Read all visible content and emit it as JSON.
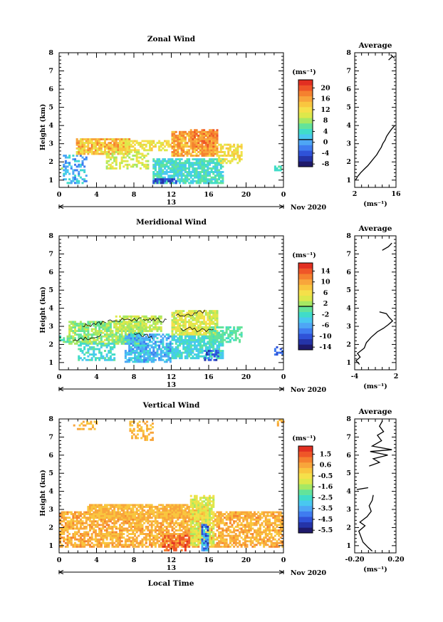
{
  "figure": {
    "xlabel": "Local Time",
    "date_label": "13",
    "month_label": "Nov 2020",
    "ylabel": "Height (km)",
    "unit_label": "(ms⁻¹)",
    "avg_title": "Average",
    "avg_xlabel": "(ms⁻¹)"
  },
  "colors": {
    "scale": [
      "#1f1a6b",
      "#2534a8",
      "#2f52d8",
      "#3f7cf0",
      "#4ea6f5",
      "#49c8f0",
      "#40dcc9",
      "#63e39a",
      "#a6e863",
      "#dde84b",
      "#f5e04a",
      "#f9c63f",
      "#f8a53b",
      "#f5812f",
      "#ef5628",
      "#e22f21"
    ]
  },
  "chart_data": [
    {
      "id": "zonal",
      "type": "heatmap",
      "title": "Zonal Wind",
      "x_range": [
        0,
        24
      ],
      "x_ticks": [
        "0",
        "4",
        "8",
        "12",
        "16",
        "20",
        "0"
      ],
      "y_range": [
        0.6,
        8
      ],
      "y_ticks": [
        "1",
        "2",
        "3",
        "4",
        "5",
        "6",
        "7",
        "8"
      ],
      "colorbar": {
        "range": [
          -10,
          22
        ],
        "ticks": [
          "20",
          "16",
          "12",
          "8",
          "4",
          "0",
          "-4",
          "-8"
        ],
        "zero_line": 0
      },
      "layers": [
        {
          "from": 0.0,
          "to": 0.6,
          "ymin": 1.5,
          "ymax": 2.0,
          "lo": 3,
          "hi": 7,
          "cov": 0.25
        },
        {
          "from": 0.4,
          "to": 3.0,
          "ymin": 0.8,
          "ymax": 2.4,
          "lo": -4,
          "hi": 4,
          "cov": 0.45
        },
        {
          "from": 1.8,
          "to": 7.5,
          "ymin": 2.4,
          "ymax": 3.3,
          "lo": 9,
          "hi": 17,
          "cov": 0.85
        },
        {
          "from": 5.0,
          "to": 9.5,
          "ymin": 1.6,
          "ymax": 2.6,
          "lo": 6,
          "hi": 12,
          "cov": 0.5
        },
        {
          "from": 7.0,
          "to": 12.0,
          "ymin": 2.6,
          "ymax": 3.2,
          "lo": 8,
          "hi": 13,
          "cov": 0.6
        },
        {
          "from": 10.0,
          "to": 17.5,
          "ymin": 0.8,
          "ymax": 2.2,
          "lo": 0,
          "hi": 6,
          "cov": 0.8
        },
        {
          "from": 12.0,
          "to": 17.0,
          "ymin": 2.3,
          "ymax": 3.7,
          "lo": 10,
          "hi": 18,
          "cov": 0.85
        },
        {
          "from": 14.0,
          "to": 17.0,
          "ymin": 2.8,
          "ymax": 3.8,
          "lo": 14,
          "hi": 19,
          "cov": 0.7
        },
        {
          "from": 17.0,
          "to": 19.5,
          "ymin": 1.9,
          "ymax": 3.0,
          "lo": 8,
          "hi": 14,
          "cov": 0.6
        },
        {
          "from": 10.0,
          "to": 12.5,
          "ymin": 0.8,
          "ymax": 1.1,
          "lo": -8,
          "hi": -4,
          "cov": 0.7
        },
        {
          "from": 23.0,
          "to": 24.0,
          "ymin": 1.5,
          "ymax": 1.8,
          "lo": 2,
          "hi": 5,
          "cov": 0.8
        }
      ],
      "contours": false,
      "average": {
        "x_range": [
          2,
          16
        ],
        "x_ticks": [
          "2",
          "16"
        ],
        "y_range": [
          0.6,
          8
        ],
        "points": [
          [
            2.3,
            1.0
          ],
          [
            3.0,
            1.2
          ],
          [
            4.0,
            1.4
          ],
          [
            5.2,
            1.6
          ],
          [
            6.5,
            1.8
          ],
          [
            7.5,
            2.0
          ],
          [
            8.5,
            2.2
          ],
          [
            9.5,
            2.4
          ],
          [
            10.2,
            2.6
          ],
          [
            11.0,
            2.8
          ],
          [
            11.5,
            3.0
          ],
          [
            12.3,
            3.2
          ],
          [
            12.8,
            3.4
          ],
          [
            13.6,
            3.6
          ],
          [
            14.5,
            3.8
          ],
          [
            15.6,
            4.0
          ]
        ],
        "points2": [
          [
            13.5,
            7.6
          ],
          [
            14.8,
            7.8
          ],
          [
            15.5,
            7.7
          ],
          [
            14.2,
            7.9
          ]
        ]
      }
    },
    {
      "id": "meridional",
      "type": "heatmap",
      "title": "Meridional Wind",
      "x_range": [
        0,
        24
      ],
      "x_ticks": [
        "0",
        "4",
        "8",
        "12",
        "16",
        "20",
        "0"
      ],
      "y_range": [
        0.6,
        8
      ],
      "y_ticks": [
        "1",
        "2",
        "3",
        "4",
        "5",
        "6",
        "7",
        "8"
      ],
      "colorbar": {
        "range": [
          -16,
          16
        ],
        "ticks": [
          "14",
          "10",
          "6",
          "2",
          "-2",
          "-6",
          "-10",
          "-14"
        ],
        "zero_line": 0
      },
      "layers": [
        {
          "from": 0.0,
          "to": 2.0,
          "ymin": 2.1,
          "ymax": 2.5,
          "lo": -3,
          "hi": 1,
          "cov": 0.6
        },
        {
          "from": 1.0,
          "to": 9.0,
          "ymin": 2.0,
          "ymax": 3.3,
          "lo": -2,
          "hi": 3,
          "cov": 0.75
        },
        {
          "from": 2.0,
          "to": 6.0,
          "ymin": 1.1,
          "ymax": 2.1,
          "lo": -6,
          "hi": -1,
          "cov": 0.5
        },
        {
          "from": 6.0,
          "to": 11.0,
          "ymin": 2.7,
          "ymax": 3.6,
          "lo": 0,
          "hi": 4,
          "cov": 0.7
        },
        {
          "from": 7.0,
          "to": 12.0,
          "ymin": 1.0,
          "ymax": 2.6,
          "lo": -9,
          "hi": -3,
          "cov": 0.75
        },
        {
          "from": 12.0,
          "to": 17.0,
          "ymin": 2.5,
          "ymax": 3.9,
          "lo": 1,
          "hi": 6,
          "cov": 0.8
        },
        {
          "from": 12.0,
          "to": 17.5,
          "ymin": 1.2,
          "ymax": 2.5,
          "lo": -6,
          "hi": -1,
          "cov": 0.75
        },
        {
          "from": 16.0,
          "to": 19.5,
          "ymin": 2.1,
          "ymax": 3.0,
          "lo": -3,
          "hi": 0,
          "cov": 0.6
        },
        {
          "from": 15.5,
          "to": 17.0,
          "ymin": 1.1,
          "ymax": 1.7,
          "lo": -13,
          "hi": -9,
          "cov": 0.5
        },
        {
          "from": 23.0,
          "to": 24.0,
          "ymin": 1.4,
          "ymax": 1.9,
          "lo": -11,
          "hi": -8,
          "cov": 0.6
        }
      ],
      "contours": true,
      "average": {
        "x_range": [
          -4,
          2
        ],
        "x_ticks": [
          "-4",
          "2"
        ],
        "y_range": [
          0.6,
          8
        ],
        "points": [
          [
            -3.3,
            0.9
          ],
          [
            -3.8,
            1.1
          ],
          [
            -3.2,
            1.3
          ],
          [
            -3.6,
            1.5
          ],
          [
            -2.6,
            1.8
          ],
          [
            -2.3,
            2.1
          ],
          [
            -1.6,
            2.4
          ],
          [
            -0.7,
            2.7
          ],
          [
            0.2,
            2.9
          ],
          [
            0.9,
            3.1
          ],
          [
            1.5,
            3.3
          ],
          [
            1.0,
            3.5
          ],
          [
            0.6,
            3.7
          ],
          [
            -0.4,
            3.8
          ]
        ],
        "points2": [
          [
            0.0,
            7.2
          ],
          [
            0.9,
            7.4
          ],
          [
            1.4,
            7.6
          ]
        ]
      }
    },
    {
      "id": "vertical",
      "type": "heatmap",
      "title": "Vertical Wind",
      "x_range": [
        0,
        24
      ],
      "x_ticks": [
        "0",
        "4",
        "8",
        "12",
        "16",
        "20",
        "0"
      ],
      "y_range": [
        0.6,
        8
      ],
      "y_ticks": [
        "1",
        "2",
        "3",
        "4",
        "5",
        "6",
        "7",
        "8"
      ],
      "colorbar": {
        "range": [
          -6.1,
          2.0
        ],
        "ticks": [
          "1.5",
          "0.6",
          "-0.5",
          "-1.6",
          "-2.5",
          "-3.5",
          "-4.5",
          "-5.5"
        ],
        "zero_line": null
      },
      "layers": [
        {
          "from": 0.0,
          "to": 24.0,
          "ymin": 0.9,
          "ymax": 2.9,
          "lo": -0.4,
          "hi": 0.6,
          "cov": 0.7
        },
        {
          "from": 3.0,
          "to": 16.0,
          "ymin": 2.5,
          "ymax": 3.3,
          "lo": -0.5,
          "hi": 0.4,
          "cov": 0.85
        },
        {
          "from": 14.0,
          "to": 16.5,
          "ymin": 1.0,
          "ymax": 3.8,
          "lo": -1.8,
          "hi": -0.6,
          "cov": 0.75
        },
        {
          "from": 11.0,
          "to": 14.0,
          "ymin": 0.7,
          "ymax": 1.6,
          "lo": 0.7,
          "hi": 1.6,
          "cov": 0.6
        },
        {
          "from": 15.2,
          "to": 15.9,
          "ymin": 0.7,
          "ymax": 2.2,
          "lo": -5.5,
          "hi": -2.5,
          "cov": 0.85
        },
        {
          "from": 1.5,
          "to": 4.0,
          "ymin": 7.4,
          "ymax": 7.9,
          "lo": -0.3,
          "hi": 0.3,
          "cov": 0.35
        },
        {
          "from": 7.5,
          "to": 10.0,
          "ymin": 6.8,
          "ymax": 7.9,
          "lo": -0.3,
          "hi": 0.4,
          "cov": 0.4
        },
        {
          "from": 23.3,
          "to": 24.0,
          "ymin": 7.6,
          "ymax": 8.0,
          "lo": -0.2,
          "hi": 0.3,
          "cov": 0.6
        }
      ],
      "contours": false,
      "average": {
        "x_range": [
          -0.2,
          0.2
        ],
        "x_ticks": [
          "-0.20",
          "0.20"
        ],
        "y_range": [
          0.6,
          8
        ],
        "points": [
          [
            -0.03,
            0.7
          ],
          [
            -0.07,
            0.9
          ],
          [
            -0.12,
            1.2
          ],
          [
            -0.14,
            1.5
          ],
          [
            -0.16,
            1.8
          ],
          [
            -0.1,
            2.1
          ],
          [
            -0.15,
            2.3
          ],
          [
            -0.08,
            2.6
          ],
          [
            -0.04,
            2.9
          ],
          [
            -0.06,
            3.2
          ],
          [
            -0.03,
            3.5
          ],
          [
            -0.02,
            3.8
          ]
        ],
        "points2": [
          [
            -0.18,
            4.1
          ],
          [
            -0.07,
            4.2
          ]
        ],
        "points3": [
          [
            -0.06,
            5.4
          ],
          [
            0.04,
            5.6
          ],
          [
            -0.02,
            5.8
          ],
          [
            0.12,
            6.0
          ],
          [
            -0.05,
            6.2
          ],
          [
            0.16,
            6.3
          ],
          [
            -0.03,
            6.5
          ],
          [
            0.06,
            6.8
          ],
          [
            0.02,
            7.1
          ],
          [
            0.08,
            7.3
          ],
          [
            0.04,
            7.6
          ],
          [
            0.07,
            7.9
          ]
        ]
      }
    }
  ]
}
